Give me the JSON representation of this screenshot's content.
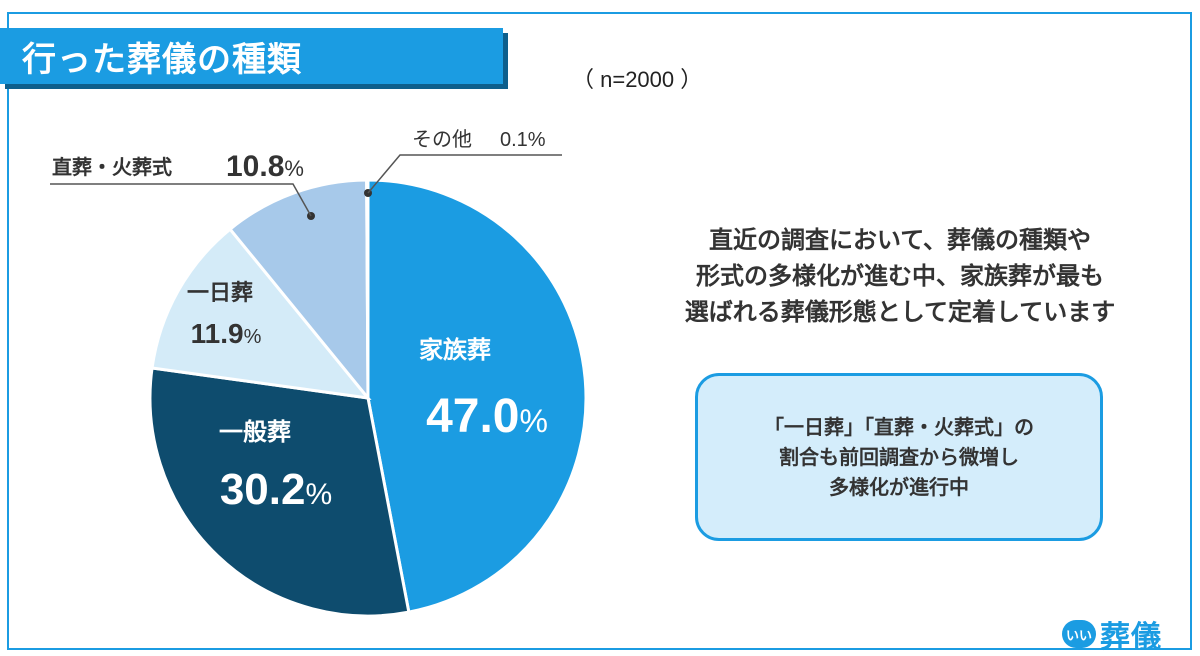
{
  "title": "行った葬儀の種類",
  "sample_note": "（ n=2000 ）",
  "summary_lines": [
    "直近の調査において、葬儀の種類や",
    "形式の多様化が進む中、家族葬が最も",
    "選ばれる葬儀形態として定着しています"
  ],
  "callout_lines": [
    "「一日葬」「直葬・火葬式」の",
    "割合も前回調査から微増し",
    "多様化が進行中"
  ],
  "logo": {
    "badge": "いい",
    "text": "葬儀"
  },
  "colors": {
    "accent": "#1b9ce2",
    "callout_bg": "#d4edfb"
  },
  "chart_data": {
    "type": "pie",
    "unit": "%",
    "slices": [
      {
        "label": "家族葬",
        "value": 47.0,
        "color": "#1b9ce2"
      },
      {
        "label": "一般葬",
        "value": 30.2,
        "color": "#0e4c6e"
      },
      {
        "label": "一日葬",
        "value": 11.9,
        "color": "#d4ebf8"
      },
      {
        "label": "直葬・火葬式",
        "value": 10.8,
        "color": "#a7c9ea"
      },
      {
        "label": "その他",
        "value": 0.1,
        "color": "#1b4d6e"
      }
    ]
  }
}
